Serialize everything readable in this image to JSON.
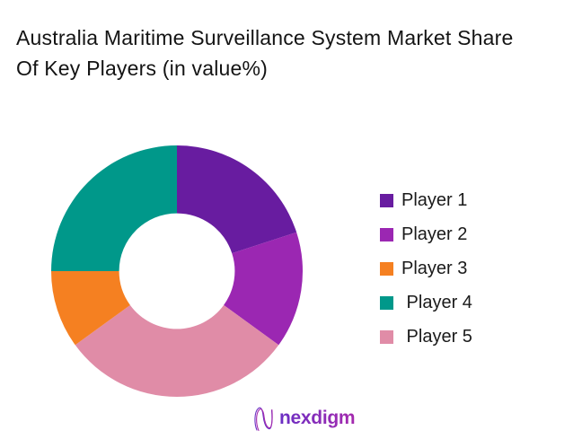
{
  "title": {
    "line1": "Australia Maritime Surveillance System Market Share",
    "line2": "Of Key Players (in value%)"
  },
  "chart_data": {
    "type": "pie",
    "subtype": "donut",
    "title": "Australia Maritime Surveillance System Market Share Of Key Players (in value%)",
    "unit": "value%",
    "categories": [
      "Player 1",
      "Player 2",
      "Player 3",
      "Player 4",
      "Player 5"
    ],
    "values": [
      20,
      15,
      10,
      25,
      30
    ],
    "colors": {
      "Player 1": "#681CA0",
      "Player 2": "#9B27B2",
      "Player 3": "#F58021",
      "Player 4": "#00988A",
      "Player 5": "#E08CA7"
    },
    "draw_order_clockwise_from_top": [
      "Player 1",
      "Player 2",
      "Player 5",
      "Player 3",
      "Player 4"
    ],
    "start_angle_deg": 0,
    "direction": "clockwise",
    "inner_radius_ratio": 0.46,
    "data_labels": false,
    "legend_position": "right"
  },
  "legend": {
    "items": [
      {
        "label": "Player 1",
        "color": "#681CA0"
      },
      {
        "label": "Player 2",
        "color": "#9B27B2"
      },
      {
        "label": "Player 3",
        "color": "#F58021"
      },
      {
        "label": " Player 4",
        "color": "#00988A"
      },
      {
        "label": " Player 5",
        "color": "#E08CA7"
      }
    ]
  },
  "footer": {
    "brand": "nexdigm",
    "brand_color_start": "#6A2FC4",
    "brand_color_end": "#A52AAE",
    "logo_icon": "nexdigm-n-wave-icon"
  }
}
